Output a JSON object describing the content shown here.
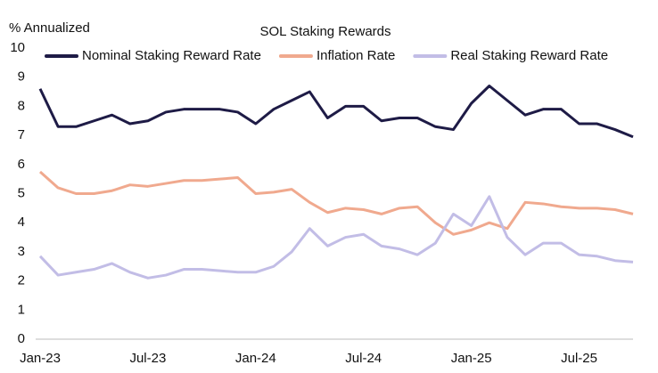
{
  "chart_data": {
    "type": "line",
    "title": "SOL Staking Rewards",
    "y_label": "% Annualized",
    "categories": [
      "Jan-23",
      null,
      null,
      null,
      null,
      null,
      "Jul-23",
      null,
      null,
      null,
      null,
      null,
      "Jan-24",
      null,
      null,
      null,
      null,
      null,
      "Jul-24",
      null,
      null,
      null,
      null,
      null,
      "Jan-25",
      null,
      null,
      null,
      null,
      null,
      "Jul-25",
      null,
      null,
      null
    ],
    "series": [
      {
        "name": "Nominal Staking Reward Rate",
        "color": "#1e1b46",
        "values": [
          8.6,
          7.3,
          7.3,
          7.5,
          7.7,
          7.4,
          7.5,
          7.8,
          7.9,
          7.9,
          7.9,
          7.8,
          7.4,
          7.9,
          8.2,
          8.5,
          7.6,
          8.0,
          8.0,
          7.5,
          7.6,
          7.6,
          7.3,
          7.2,
          8.1,
          8.7,
          8.2,
          7.7,
          7.9,
          7.9,
          7.4,
          7.4,
          7.2,
          6.95
        ]
      },
      {
        "name": "Inflation Rate",
        "color": "#f0a98e",
        "values": [
          5.75,
          5.2,
          5.0,
          5.0,
          5.1,
          5.3,
          5.25,
          5.35,
          5.45,
          5.45,
          5.5,
          5.55,
          5.0,
          5.05,
          5.15,
          4.7,
          4.35,
          4.5,
          4.45,
          4.3,
          4.5,
          4.55,
          4.0,
          3.6,
          3.75,
          4.0,
          3.8,
          4.7,
          4.65,
          4.55,
          4.5,
          4.5,
          4.45,
          4.3
        ]
      },
      {
        "name": "Real Staking Reward Rate",
        "color": "#c2bde6",
        "values": [
          2.85,
          2.2,
          2.3,
          2.4,
          2.6,
          2.3,
          2.1,
          2.2,
          2.4,
          2.4,
          2.35,
          2.3,
          2.3,
          2.5,
          3.0,
          3.8,
          3.2,
          3.5,
          3.6,
          3.2,
          3.1,
          2.9,
          3.3,
          4.3,
          3.9,
          4.9,
          3.5,
          2.9,
          3.3,
          3.3,
          2.9,
          2.85,
          2.7,
          2.65
        ]
      }
    ],
    "ylim": [
      0,
      10
    ],
    "yticks": [
      0,
      1,
      2,
      3,
      4,
      5,
      6,
      7,
      8,
      9,
      10
    ],
    "grid": false,
    "legend": "top"
  }
}
